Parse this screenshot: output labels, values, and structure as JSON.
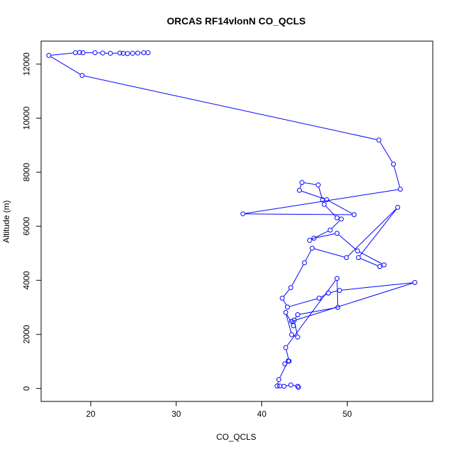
{
  "chart_data": {
    "type": "line",
    "title": "ORCAS RF14vlonN CO_QCLS",
    "xlabel": "CO_QCLS",
    "ylabel": "Altitude (m)",
    "xlim": [
      14.2,
      60.0
    ],
    "ylim": [
      -480,
      12850
    ],
    "xticks": [
      20,
      30,
      40,
      50
    ],
    "yticks": [
      0,
      2000,
      4000,
      6000,
      8000,
      10000,
      12000
    ],
    "grid": false,
    "legend": "none",
    "marker": "open-circle",
    "series": [
      {
        "color": "#0000ff",
        "points": [
          [
            26.7,
            12420
          ],
          [
            26.2,
            12420
          ],
          [
            25.5,
            12410
          ],
          [
            24.9,
            12400
          ],
          [
            24.3,
            12390
          ],
          [
            23.8,
            12400
          ],
          [
            23.4,
            12410
          ],
          [
            22.3,
            12400
          ],
          [
            21.4,
            12410
          ],
          [
            20.5,
            12420
          ],
          [
            19.1,
            12420
          ],
          [
            18.7,
            12430
          ],
          [
            18.2,
            12420
          ],
          [
            15.1,
            12320
          ],
          [
            19.0,
            11580
          ],
          [
            53.7,
            9190
          ],
          [
            55.4,
            8300
          ],
          [
            56.2,
            7370
          ],
          [
            37.8,
            6460
          ],
          [
            50.8,
            6430
          ],
          [
            47.6,
            6980
          ],
          [
            44.4,
            7330
          ],
          [
            44.7,
            7620
          ],
          [
            46.6,
            7530
          ],
          [
            47.1,
            6980
          ],
          [
            47.3,
            6810
          ],
          [
            48.8,
            6310
          ],
          [
            49.3,
            6270
          ],
          [
            48.0,
            5860
          ],
          [
            45.6,
            5480
          ],
          [
            46.1,
            5560
          ],
          [
            48.8,
            5740
          ],
          [
            51.2,
            5090
          ],
          [
            54.3,
            4570
          ],
          [
            53.8,
            4510
          ],
          [
            51.3,
            4840
          ],
          [
            55.9,
            6700
          ],
          [
            49.9,
            4840
          ],
          [
            45.9,
            5190
          ],
          [
            45.0,
            4650
          ],
          [
            43.4,
            3730
          ],
          [
            42.4,
            3340
          ],
          [
            43.0,
            3010
          ],
          [
            46.7,
            3340
          ],
          [
            47.8,
            3530
          ],
          [
            49.1,
            3630
          ],
          [
            57.9,
            3920
          ],
          [
            43.5,
            2480
          ],
          [
            43.7,
            2320
          ],
          [
            42.8,
            2810
          ],
          [
            43.5,
            1990
          ],
          [
            44.2,
            1900
          ],
          [
            43.8,
            2530
          ],
          [
            44.2,
            2730
          ],
          [
            48.9,
            3000
          ],
          [
            48.8,
            4070
          ],
          [
            42.8,
            1510
          ],
          [
            43.2,
            1010
          ],
          [
            42.7,
            910
          ],
          [
            43.1,
            1020
          ],
          [
            42.0,
            330
          ],
          [
            41.8,
            90
          ],
          [
            42.1,
            90
          ],
          [
            42.6,
            80
          ],
          [
            43.4,
            130
          ],
          [
            44.2,
            80
          ],
          [
            44.3,
            40
          ]
        ]
      }
    ]
  }
}
